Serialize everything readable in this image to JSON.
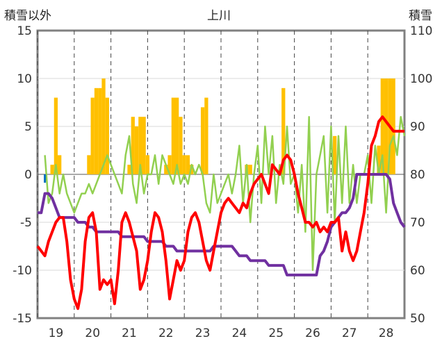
{
  "chart_data": {
    "type": "line",
    "title": "上川",
    "ylabel_left": "積雪以外",
    "ylabel_right": "積雪",
    "ylim_left": [
      -15,
      15
    ],
    "ylim_right": [
      50,
      110
    ],
    "yticks_left": [
      "15",
      "10",
      "5",
      "0",
      "-5",
      "-10",
      "-15"
    ],
    "yticks_right": [
      "110",
      "100",
      "90",
      "80",
      "70",
      "60",
      "50"
    ],
    "x_categories": [
      "19",
      "20",
      "21",
      "22",
      "23",
      "24",
      "25",
      "26",
      "27",
      "28"
    ],
    "xlim": [
      18.5,
      28.5
    ],
    "grid": "vertical dashed",
    "colors": {
      "temperature": "#ff0000",
      "humidity_like": "#92d050",
      "snow_depth": "#7030a0",
      "precip_bars": "#ffc000",
      "blue_mark": "#0070c0"
    },
    "series": [
      {
        "axis": "left",
        "x": [
          18.5,
          18.6,
          18.7,
          18.8,
          18.9,
          19.0,
          19.1,
          19.2,
          19.3,
          19.4,
          19.5,
          19.6,
          19.7,
          19.8,
          19.9,
          20.0,
          20.1,
          20.2,
          20.3,
          20.4,
          20.5,
          20.6,
          20.7,
          20.8,
          20.9,
          21.0,
          21.1,
          21.2,
          21.3,
          21.4,
          21.5,
          21.6,
          21.7,
          21.8,
          21.9,
          22.0,
          22.1,
          22.2,
          22.3,
          22.4,
          22.5,
          22.6,
          22.7,
          22.8,
          22.9,
          23.0,
          23.1,
          23.2,
          23.3,
          23.4,
          23.5,
          23.6,
          23.7,
          23.8,
          23.9,
          24.0,
          24.1,
          24.2,
          24.3,
          24.4,
          24.5,
          24.6,
          24.7,
          24.8,
          24.9,
          25.0,
          25.1,
          25.2,
          25.3,
          25.4,
          25.5,
          25.6,
          25.7,
          25.8,
          25.9,
          26.0,
          26.1,
          26.2,
          26.3,
          26.4,
          26.5,
          26.6,
          26.7,
          26.8,
          26.9,
          27.0,
          27.1,
          27.2,
          27.3,
          27.4,
          27.5,
          27.6,
          27.7,
          27.8,
          27.9,
          28.0,
          28.1,
          28.2,
          28.3,
          28.4,
          28.5
        ],
        "values": [
          -7.5,
          -8,
          -8.5,
          -7,
          -6,
          -5,
          -4.5,
          -4.5,
          -7,
          -11,
          -13,
          -14,
          -12,
          -7,
          -4.5,
          -4,
          -6,
          -12,
          -11,
          -11.5,
          -11,
          -13.5,
          -10,
          -5,
          -4,
          -5,
          -6.5,
          -8,
          -12,
          -11,
          -9,
          -6,
          -4,
          -4.5,
          -6,
          -9,
          -13,
          -11,
          -9,
          -10,
          -9,
          -6,
          -4.5,
          -4,
          -5,
          -7,
          -9,
          -10,
          -8,
          -6,
          -4,
          -3,
          -2.5,
          -3,
          -3.5,
          -4,
          -3,
          -3.5,
          -2,
          -1,
          -0.5,
          0,
          -1,
          -2,
          1,
          0.5,
          0,
          1.5,
          2,
          1.5,
          0,
          -2,
          -3.5,
          -5,
          -5,
          -5.5,
          -5,
          -6,
          -5.5,
          -6,
          -5,
          -5,
          -4.5,
          -8,
          -6,
          -8,
          -9,
          -8,
          -6,
          -4,
          -1,
          3,
          4,
          5.5,
          6,
          5.5,
          5,
          4.5,
          4.5,
          4.5,
          4.5
        ]
      },
      {
        "axis": "left",
        "x": [
          18.7,
          18.8,
          18.9,
          19.0,
          19.1,
          19.2,
          19.3,
          19.4,
          19.5,
          19.6,
          19.7,
          19.8,
          19.9,
          20.0,
          20.4,
          20.5,
          20.7,
          20.8,
          20.9,
          21.0,
          21.1,
          21.2,
          21.3,
          21.4,
          21.5,
          21.6,
          21.7,
          21.8,
          21.9,
          22.0,
          22.1,
          22.2,
          22.3,
          22.4,
          22.5,
          22.6,
          22.7,
          22.8,
          22.9,
          23.0,
          23.1,
          23.2,
          23.3,
          23.4,
          23.5,
          23.6,
          23.7,
          23.8,
          23.9,
          24.0,
          24.1,
          24.2,
          24.3,
          24.4,
          24.5,
          24.6,
          24.7,
          24.8,
          24.9,
          25.0,
          25.1,
          25.2,
          25.3,
          25.4,
          25.5,
          25.6,
          25.7,
          25.8,
          25.9,
          26.0,
          26.1,
          26.2,
          26.3,
          26.4,
          26.5,
          26.6,
          26.7,
          26.8,
          26.9,
          27.0,
          27.1,
          27.2,
          27.3,
          27.4,
          27.5,
          27.6,
          27.7,
          27.8,
          27.9,
          28.0,
          28.1,
          28.2,
          28.3,
          28.4,
          28.5
        ],
        "values": [
          2,
          -3,
          -2,
          1,
          -2,
          0,
          -2,
          -3,
          -4,
          -3,
          -2,
          -2,
          -1,
          -2,
          2,
          1,
          -1,
          -2,
          2,
          4,
          -1,
          -3,
          1,
          -2,
          0,
          0,
          2,
          -1,
          2,
          1,
          0,
          -1,
          1,
          -1,
          0,
          -1,
          1,
          0,
          1,
          0,
          -3,
          -4,
          0,
          -3,
          -2,
          -1,
          0,
          -2,
          0,
          3,
          -3,
          1,
          -5,
          0,
          3,
          -3,
          5,
          0,
          4,
          -3,
          1,
          -1,
          5,
          -1,
          0,
          -4,
          1,
          -6,
          6,
          -10,
          0,
          2,
          4,
          -4,
          5,
          -5,
          4,
          -3,
          5,
          -3,
          1,
          -3,
          0,
          0,
          2,
          -3,
          3,
          0,
          2,
          -4,
          3,
          4,
          2,
          6,
          4
        ]
      },
      {
        "axis": "right",
        "x": [
          18.5,
          18.6,
          18.7,
          18.8,
          18.9,
          19.0,
          19.1,
          19.2,
          19.3,
          19.4,
          19.5,
          19.6,
          19.7,
          19.8,
          19.9,
          20.0,
          20.1,
          20.2,
          20.3,
          20.4,
          20.5,
          20.6,
          20.7,
          20.8,
          20.9,
          21.0,
          21.1,
          21.2,
          21.3,
          21.4,
          21.5,
          21.6,
          21.7,
          21.8,
          21.9,
          22.0,
          22.1,
          22.2,
          22.3,
          22.4,
          22.5,
          22.6,
          22.7,
          22.8,
          22.9,
          23.0,
          23.1,
          23.2,
          23.3,
          23.4,
          23.5,
          23.6,
          23.7,
          23.8,
          23.9,
          24.0,
          24.1,
          24.2,
          24.3,
          24.4,
          24.5,
          24.6,
          24.7,
          24.8,
          24.9,
          25.0,
          25.1,
          25.2,
          25.3,
          25.4,
          25.5,
          25.6,
          25.7,
          25.8,
          25.9,
          26.0,
          26.1,
          26.2,
          26.3,
          26.4,
          26.5,
          26.6,
          26.7,
          26.8,
          26.9,
          27.0,
          27.1,
          27.2,
          27.3,
          27.4,
          27.5,
          27.6,
          27.7,
          27.8,
          27.9,
          28.0,
          28.1,
          28.2,
          28.3,
          28.4,
          28.5
        ],
        "values": [
          72,
          72,
          76,
          76,
          75,
          73,
          71,
          71,
          71,
          71,
          71,
          70,
          70,
          70,
          69,
          69,
          68,
          68,
          68,
          68,
          68,
          68,
          68,
          67,
          67,
          67,
          67,
          67,
          67,
          67,
          66,
          66,
          66,
          66,
          66,
          65,
          65,
          65,
          64,
          64,
          64,
          64,
          64,
          64,
          64,
          64,
          64,
          64,
          65,
          65,
          65,
          65,
          65,
          65,
          64,
          63,
          63,
          63,
          62,
          62,
          62,
          62,
          62,
          61,
          61,
          61,
          61,
          61,
          59,
          59,
          59,
          59,
          59,
          59,
          59,
          59,
          59,
          63,
          64,
          66,
          69,
          70,
          71,
          72,
          72,
          73,
          75,
          80,
          80,
          80,
          80,
          80,
          80,
          80,
          80,
          80,
          79,
          74,
          72,
          70,
          69
        ]
      },
      {
        "axis": "left",
        "type": "bar",
        "x": [
          18.9,
          19.0,
          19.1,
          19.9,
          20.0,
          20.1,
          20.2,
          20.3,
          20.4,
          21.0,
          21.1,
          21.2,
          21.3,
          21.4,
          21.5,
          21.6,
          22.0,
          22.1,
          22.2,
          22.3,
          22.4,
          22.5,
          22.6,
          22.7,
          22.8,
          23.0,
          23.1,
          24.2,
          24.3,
          25.1,
          25.2,
          26.6,
          27.8,
          27.9,
          28.0,
          28.1,
          28.2
        ],
        "values": [
          1,
          8,
          2,
          2,
          8,
          9,
          9,
          10,
          8,
          1,
          6,
          5,
          6,
          6,
          2,
          0,
          1,
          2,
          8,
          8,
          6,
          2,
          2,
          1,
          0,
          7,
          8,
          1,
          1,
          0,
          9,
          4,
          3,
          10,
          10,
          10,
          10
        ]
      }
    ],
    "blue_mark": {
      "x": 18.7,
      "value": 0
    }
  }
}
